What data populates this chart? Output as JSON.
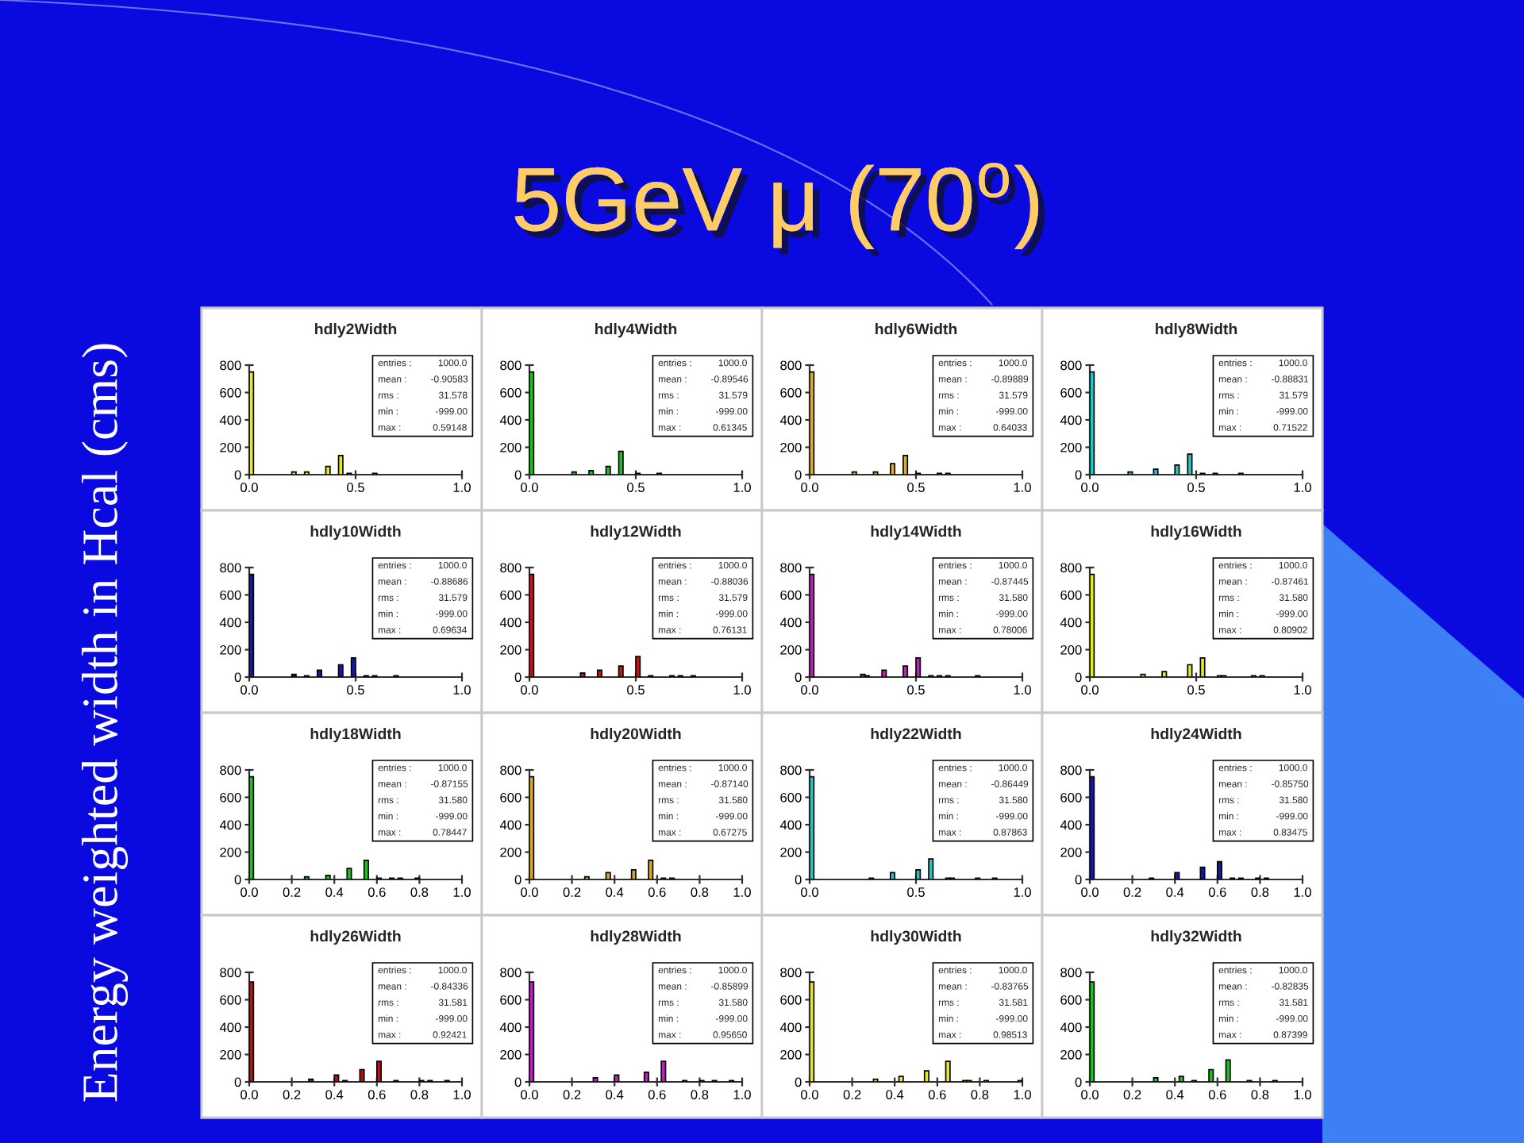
{
  "chart_data": [
    {
      "type": "other",
      "title": "5GeV μ (70$^{o}$)",
      "ylabel": "Energy weighted width in Hcal (cms)"
    },
    {
      "type": "histogram",
      "title": "hdly2Width",
      "color": "#e8e820",
      "bins": [
        0,
        0.02,
        0.2,
        0.22,
        0.26,
        0.28,
        0.36,
        0.38,
        0.42,
        0.44,
        0.46,
        0.48,
        0.58,
        0.6
      ],
      "values": [
        750,
        0,
        20,
        0,
        20,
        0,
        60,
        0,
        140,
        0,
        10,
        0,
        10
      ],
      "xlim": [
        0,
        1
      ],
      "ylim": [
        0,
        800
      ],
      "xticks": [
        {
          "value": 0,
          "label": "0.0"
        },
        {
          "value": 0.5,
          "label": "0.5"
        },
        {
          "value": 1,
          "label": "1.0"
        }
      ],
      "yticks": [
        0,
        200,
        400,
        600,
        800
      ],
      "annotations": [
        "entries : 1000.0",
        "mean : -0.90583",
        "rms : 31.578",
        "min : -999.00",
        "max : 0.59148"
      ]
    },
    {
      "type": "histogram",
      "title": "hdly4Width",
      "color": "#20c020",
      "bins": [
        0,
        0.02,
        0.2,
        0.22,
        0.28,
        0.3,
        0.36,
        0.38,
        0.42,
        0.44,
        0.5,
        0.52,
        0.6,
        0.62
      ],
      "values": [
        750,
        0,
        20,
        0,
        30,
        0,
        60,
        0,
        170,
        0,
        10,
        0,
        10
      ],
      "xlim": [
        0,
        1
      ],
      "ylim": [
        0,
        800
      ],
      "xticks": [
        {
          "value": 0,
          "label": "0.0"
        },
        {
          "value": 0.5,
          "label": "0.5"
        },
        {
          "value": 1,
          "label": "1.0"
        }
      ],
      "yticks": [
        0,
        200,
        400,
        600,
        800
      ],
      "annotations": [
        "entries : 1000.0",
        "mean : -0.89546",
        "rms : 31.579",
        "min : -999.00",
        "max : 0.61345"
      ]
    },
    {
      "type": "histogram",
      "title": "hdly6Width",
      "color": "#e0b020",
      "bins": [
        0,
        0.02,
        0.2,
        0.22,
        0.3,
        0.32,
        0.38,
        0.4,
        0.44,
        0.46,
        0.5,
        0.52,
        0.6,
        0.62,
        0.64,
        0.66
      ],
      "values": [
        750,
        0,
        20,
        0,
        20,
        0,
        80,
        0,
        140,
        0,
        10,
        0,
        10,
        0,
        10
      ],
      "xlim": [
        0,
        1
      ],
      "ylim": [
        0,
        800
      ],
      "xticks": [
        {
          "value": 0,
          "label": "0.0"
        },
        {
          "value": 0.5,
          "label": "0.5"
        },
        {
          "value": 1,
          "label": "1.0"
        }
      ],
      "yticks": [
        0,
        200,
        400,
        600,
        800
      ],
      "annotations": [
        "entries : 1000.0",
        "mean : -0.89889",
        "rms : 31.579",
        "min : -999.00",
        "max : 0.64033"
      ]
    },
    {
      "type": "histogram",
      "title": "hdly8Width",
      "color": "#20c8c8",
      "bins": [
        0,
        0.02,
        0.18,
        0.2,
        0.3,
        0.32,
        0.4,
        0.42,
        0.46,
        0.48,
        0.52,
        0.54,
        0.58,
        0.6,
        0.7,
        0.72
      ],
      "values": [
        750,
        0,
        20,
        0,
        40,
        0,
        70,
        0,
        150,
        0,
        10,
        0,
        10,
        0,
        10
      ],
      "xlim": [
        0,
        1
      ],
      "ylim": [
        0,
        800
      ],
      "xticks": [
        {
          "value": 0,
          "label": "0.0"
        },
        {
          "value": 0.5,
          "label": "0.5"
        },
        {
          "value": 1,
          "label": "1.0"
        }
      ],
      "yticks": [
        0,
        200,
        400,
        600,
        800
      ],
      "annotations": [
        "entries : 1000.0",
        "mean : -0.88831",
        "rms : 31.579",
        "min : -999.00",
        "max : 0.71522"
      ]
    },
    {
      "type": "histogram",
      "title": "hdly10Width",
      "color": "#1818a8",
      "bins": [
        0,
        0.02,
        0.2,
        0.22,
        0.26,
        0.28,
        0.32,
        0.34,
        0.42,
        0.44,
        0.48,
        0.5,
        0.54,
        0.56,
        0.58,
        0.6,
        0.68,
        0.7
      ],
      "values": [
        750,
        0,
        20,
        0,
        10,
        0,
        50,
        0,
        90,
        0,
        140,
        0,
        10,
        0,
        10,
        0,
        10
      ],
      "xlim": [
        0,
        1
      ],
      "ylim": [
        0,
        800
      ],
      "xticks": [
        {
          "value": 0,
          "label": "0.0"
        },
        {
          "value": 0.5,
          "label": "0.5"
        },
        {
          "value": 1,
          "label": "1.0"
        }
      ],
      "yticks": [
        0,
        200,
        400,
        600,
        800
      ],
      "annotations": [
        "entries : 1000.0",
        "mean : -0.88686",
        "rms : 31.579",
        "min : -999.00",
        "max : 0.69634"
      ]
    },
    {
      "type": "histogram",
      "title": "hdly12Width",
      "color": "#c01818",
      "bins": [
        0,
        0.02,
        0.24,
        0.26,
        0.32,
        0.34,
        0.42,
        0.44,
        0.5,
        0.52,
        0.56,
        0.58,
        0.66,
        0.68,
        0.7,
        0.72,
        0.76,
        0.78
      ],
      "values": [
        750,
        0,
        30,
        0,
        50,
        0,
        80,
        0,
        150,
        0,
        10,
        0,
        10,
        0,
        10,
        0,
        10
      ],
      "xlim": [
        0,
        1
      ],
      "ylim": [
        0,
        800
      ],
      "xticks": [
        {
          "value": 0,
          "label": "0.0"
        },
        {
          "value": 0.5,
          "label": "0.5"
        },
        {
          "value": 1,
          "label": "1.0"
        }
      ],
      "yticks": [
        0,
        200,
        400,
        600,
        800
      ],
      "annotations": [
        "entries : 1000.0",
        "mean : -0.88036",
        "rms : 31.579",
        "min : -999.00",
        "max : 0.76131"
      ]
    },
    {
      "type": "histogram",
      "title": "hdly14Width",
      "color": "#c020c0",
      "bins": [
        0,
        0.02,
        0.24,
        0.26,
        0.28,
        0.34,
        0.36,
        0.44,
        0.46,
        0.5,
        0.52,
        0.56,
        0.58,
        0.6,
        0.62,
        0.64,
        0.66,
        0.78,
        0.8
      ],
      "values": [
        750,
        0,
        20,
        10,
        0,
        50,
        0,
        80,
        0,
        140,
        0,
        10,
        0,
        10,
        0,
        10,
        0,
        10
      ],
      "xlim": [
        0,
        1
      ],
      "ylim": [
        0,
        800
      ],
      "xticks": [
        {
          "value": 0,
          "label": "0.0"
        },
        {
          "value": 0.5,
          "label": "0.5"
        },
        {
          "value": 1,
          "label": "1.0"
        }
      ],
      "yticks": [
        0,
        200,
        400,
        600,
        800
      ],
      "annotations": [
        "entries : 1000.0",
        "mean : -0.87445",
        "rms : 31.580",
        "min : -999.00",
        "max : 0.78006"
      ]
    },
    {
      "type": "histogram",
      "title": "hdly16Width",
      "color": "#e8e820",
      "bins": [
        0,
        0.02,
        0.24,
        0.26,
        0.34,
        0.36,
        0.46,
        0.48,
        0.52,
        0.54,
        0.6,
        0.62,
        0.64,
        0.76,
        0.78,
        0.8,
        0.82
      ],
      "values": [
        750,
        0,
        20,
        0,
        40,
        0,
        90,
        0,
        140,
        0,
        10,
        10,
        0,
        10,
        0,
        10
      ],
      "xlim": [
        0,
        1
      ],
      "ylim": [
        0,
        800
      ],
      "xticks": [
        {
          "value": 0,
          "label": "0.0"
        },
        {
          "value": 0.5,
          "label": "0.5"
        },
        {
          "value": 1,
          "label": "1.0"
        }
      ],
      "yticks": [
        0,
        200,
        400,
        600,
        800
      ],
      "annotations": [
        "entries : 1000.0",
        "mean : -0.87461",
        "rms : 31.580",
        "min : -999.00",
        "max : 0.80902"
      ]
    },
    {
      "type": "histogram",
      "title": "hdly18Width",
      "color": "#20c020",
      "bins": [
        0,
        0.02,
        0.26,
        0.28,
        0.36,
        0.38,
        0.46,
        0.48,
        0.54,
        0.56,
        0.6,
        0.62,
        0.66,
        0.68,
        0.7,
        0.72,
        0.78,
        0.8
      ],
      "values": [
        750,
        0,
        20,
        0,
        30,
        0,
        80,
        0,
        140,
        0,
        10,
        0,
        10,
        0,
        10,
        0,
        10
      ],
      "xlim": [
        0,
        1
      ],
      "ylim": [
        0,
        800
      ],
      "xticks": [
        {
          "value": 0,
          "label": "0.0"
        },
        {
          "value": 0.2,
          "label": "0.2"
        },
        {
          "value": 0.4,
          "label": "0.4"
        },
        {
          "value": 0.6,
          "label": "0.6"
        },
        {
          "value": 0.8,
          "label": "0.8"
        },
        {
          "value": 1,
          "label": "1.0"
        }
      ],
      "yticks": [
        0,
        200,
        400,
        600,
        800
      ],
      "annotations": [
        "entries : 1000.0",
        "mean : -0.87155",
        "rms : 31.580",
        "min : -999.00",
        "max : 0.78447"
      ]
    },
    {
      "type": "histogram",
      "title": "hdly20Width",
      "color": "#d8a830",
      "bins": [
        0,
        0.02,
        0.26,
        0.28,
        0.36,
        0.38,
        0.48,
        0.5,
        0.56,
        0.58,
        0.62,
        0.64,
        0.66,
        0.68
      ],
      "values": [
        750,
        0,
        20,
        0,
        50,
        0,
        70,
        0,
        140,
        0,
        10,
        0,
        10
      ],
      "xlim": [
        0,
        1
      ],
      "ylim": [
        0,
        800
      ],
      "xticks": [
        {
          "value": 0,
          "label": "0.0"
        },
        {
          "value": 0.2,
          "label": "0.2"
        },
        {
          "value": 0.4,
          "label": "0.4"
        },
        {
          "value": 0.6,
          "label": "0.6"
        },
        {
          "value": 0.8,
          "label": "0.8"
        },
        {
          "value": 1,
          "label": "1.0"
        }
      ],
      "yticks": [
        0,
        200,
        400,
        600,
        800
      ],
      "annotations": [
        "entries : 1000.0",
        "mean : -0.87140",
        "rms : 31.580",
        "min : -999.00",
        "max : 0.67275"
      ]
    },
    {
      "type": "histogram",
      "title": "hdly22Width",
      "color": "#20c8c8",
      "bins": [
        0,
        0.02,
        0.28,
        0.3,
        0.38,
        0.4,
        0.5,
        0.52,
        0.56,
        0.58,
        0.64,
        0.66,
        0.68,
        0.78,
        0.8,
        0.86,
        0.88
      ],
      "values": [
        750,
        0,
        10,
        0,
        50,
        0,
        70,
        0,
        150,
        0,
        10,
        10,
        0,
        10,
        0,
        10
      ],
      "xlim": [
        0,
        1
      ],
      "ylim": [
        0,
        800
      ],
      "xticks": [
        {
          "value": 0,
          "label": "0.0"
        },
        {
          "value": 0.5,
          "label": "0.5"
        },
        {
          "value": 1,
          "label": "1.0"
        }
      ],
      "yticks": [
        0,
        200,
        400,
        600,
        800
      ],
      "annotations": [
        "entries : 1000.0",
        "mean : -0.86449",
        "rms : 31.580",
        "min : -999.00",
        "max : 0.87863"
      ]
    },
    {
      "type": "histogram",
      "title": "hdly24Width",
      "color": "#1818a8",
      "bins": [
        0,
        0.02,
        0.28,
        0.3,
        0.4,
        0.42,
        0.52,
        0.54,
        0.6,
        0.62,
        0.66,
        0.68,
        0.7,
        0.72,
        0.78,
        0.8,
        0.82,
        0.84
      ],
      "values": [
        750,
        0,
        10,
        0,
        50,
        0,
        90,
        0,
        130,
        0,
        10,
        0,
        10,
        0,
        10,
        0,
        10
      ],
      "xlim": [
        0,
        1
      ],
      "ylim": [
        0,
        800
      ],
      "xticks": [
        {
          "value": 0,
          "label": "0.0"
        },
        {
          "value": 0.2,
          "label": "0.2"
        },
        {
          "value": 0.4,
          "label": "0.4"
        },
        {
          "value": 0.6,
          "label": "0.6"
        },
        {
          "value": 0.8,
          "label": "0.8"
        },
        {
          "value": 1,
          "label": "1.0"
        }
      ],
      "yticks": [
        0,
        200,
        400,
        600,
        800
      ],
      "annotations": [
        "entries : 1000.0",
        "mean : -0.85750",
        "rms : 31.580",
        "min : -999.00",
        "max : 0.83475"
      ]
    },
    {
      "type": "histogram",
      "title": "hdly26Width",
      "color": "#b01414",
      "bins": [
        0,
        0.02,
        0.28,
        0.3,
        0.4,
        0.42,
        0.44,
        0.46,
        0.52,
        0.54,
        0.6,
        0.62,
        0.68,
        0.7,
        0.8,
        0.82,
        0.84,
        0.86,
        0.92,
        0.94
      ],
      "values": [
        730,
        0,
        20,
        0,
        50,
        0,
        10,
        0,
        90,
        0,
        150,
        0,
        10,
        0,
        10,
        0,
        10,
        0,
        10
      ],
      "xlim": [
        0,
        1
      ],
      "ylim": [
        0,
        800
      ],
      "xticks": [
        {
          "value": 0,
          "label": "0.0"
        },
        {
          "value": 0.2,
          "label": "0.2"
        },
        {
          "value": 0.4,
          "label": "0.4"
        },
        {
          "value": 0.6,
          "label": "0.6"
        },
        {
          "value": 0.8,
          "label": "0.8"
        },
        {
          "value": 1,
          "label": "1.0"
        }
      ],
      "yticks": [
        0,
        200,
        400,
        600,
        800
      ],
      "annotations": [
        "entries : 1000.0",
        "mean : -0.84336",
        "rms : 31.581",
        "min : -999.00",
        "max : 0.92421"
      ]
    },
    {
      "type": "histogram",
      "title": "hdly28Width",
      "color": "#c020c0",
      "bins": [
        0,
        0.02,
        0.3,
        0.32,
        0.4,
        0.42,
        0.54,
        0.56,
        0.62,
        0.64,
        0.72,
        0.74,
        0.8,
        0.82,
        0.86,
        0.88,
        0.94,
        0.96
      ],
      "values": [
        730,
        0,
        30,
        0,
        50,
        0,
        70,
        0,
        150,
        0,
        10,
        0,
        10,
        0,
        10,
        0,
        10
      ],
      "xlim": [
        0,
        1
      ],
      "ylim": [
        0,
        800
      ],
      "xticks": [
        {
          "value": 0,
          "label": "0.0"
        },
        {
          "value": 0.2,
          "label": "0.2"
        },
        {
          "value": 0.4,
          "label": "0.4"
        },
        {
          "value": 0.6,
          "label": "0.6"
        },
        {
          "value": 0.8,
          "label": "0.8"
        },
        {
          "value": 1,
          "label": "1.0"
        }
      ],
      "yticks": [
        0,
        200,
        400,
        600,
        800
      ],
      "annotations": [
        "entries : 1000.0",
        "mean : -0.85899",
        "rms : 31.580",
        "min : -999.00",
        "max : 0.95650"
      ]
    },
    {
      "type": "histogram",
      "title": "hdly30Width",
      "color": "#e8e820",
      "bins": [
        0,
        0.02,
        0.3,
        0.32,
        0.42,
        0.44,
        0.54,
        0.56,
        0.64,
        0.66,
        0.72,
        0.74,
        0.76,
        0.82,
        0.84,
        0.98,
        1
      ],
      "values": [
        730,
        0,
        20,
        0,
        40,
        0,
        80,
        0,
        150,
        0,
        10,
        10,
        0,
        10,
        0,
        10
      ],
      "xlim": [
        0,
        1
      ],
      "ylim": [
        0,
        800
      ],
      "xticks": [
        {
          "value": 0,
          "label": "0.0"
        },
        {
          "value": 0.2,
          "label": "0.2"
        },
        {
          "value": 0.4,
          "label": "0.4"
        },
        {
          "value": 0.6,
          "label": "0.6"
        },
        {
          "value": 0.8,
          "label": "0.8"
        },
        {
          "value": 1,
          "label": "1.0"
        }
      ],
      "yticks": [
        0,
        200,
        400,
        600,
        800
      ],
      "annotations": [
        "entries : 1000.0",
        "mean : -0.83765",
        "rms : 31.581",
        "min : -999.00",
        "max : 0.98513"
      ]
    },
    {
      "type": "histogram",
      "title": "hdly32Width",
      "color": "#20c020",
      "bins": [
        0,
        0.02,
        0.3,
        0.32,
        0.42,
        0.44,
        0.48,
        0.5,
        0.56,
        0.58,
        0.64,
        0.66,
        0.74,
        0.76,
        0.86,
        0.88
      ],
      "values": [
        730,
        0,
        30,
        0,
        40,
        0,
        10,
        0,
        90,
        0,
        160,
        0,
        10,
        0,
        10
      ],
      "xlim": [
        0,
        1
      ],
      "ylim": [
        0,
        800
      ],
      "xticks": [
        {
          "value": 0,
          "label": "0.0"
        },
        {
          "value": 0.2,
          "label": "0.2"
        },
        {
          "value": 0.4,
          "label": "0.4"
        },
        {
          "value": 0.6,
          "label": "0.6"
        },
        {
          "value": 0.8,
          "label": "0.8"
        },
        {
          "value": 1,
          "label": "1.0"
        }
      ],
      "yticks": [
        0,
        200,
        400,
        600,
        800
      ],
      "annotations": [
        "entries : 1000.0",
        "mean : -0.82835",
        "rms : 31.581",
        "min : -999.00",
        "max : 0.87399"
      ]
    }
  ]
}
